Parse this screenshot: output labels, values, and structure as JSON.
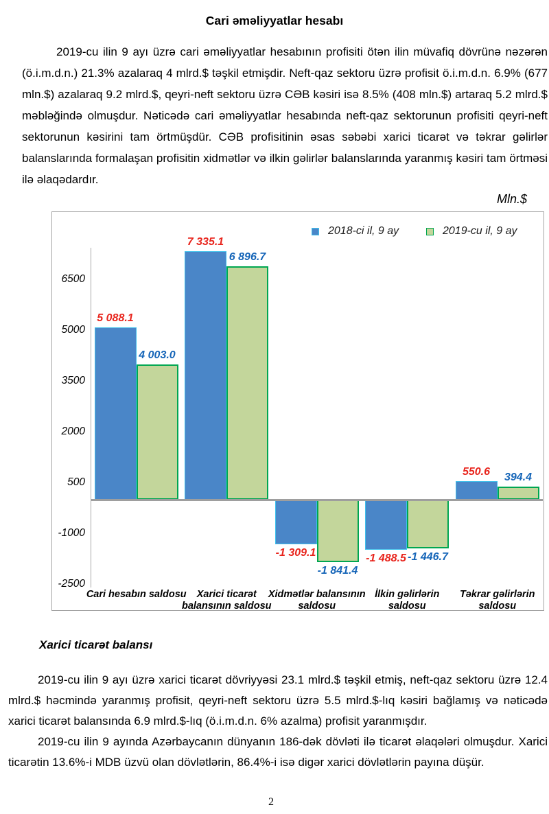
{
  "doc": {
    "title": "Cari əməliyyatlar hesabı",
    "para1": "2019-cu ilin 9 ayı üzrə cari əməliyyatlar hesabının profisiti ötən ilin müvafiq dövrünə nəzərən (ö.i.m.d.n.) 21.3% azalaraq 4 mlrd.$ təşkil etmişdir. Neft-qaz sektoru üzrə profisit ö.i.m.d.n. 6.9% (677 mln.$) azalaraq 9.2 mlrd.$, qeyri-neft sektoru üzrə CƏB kəsiri isə 8.5% (408 mln.$) artaraq 5.2 mlrd.$ məbləğində olmuşdur. Nəticədə cari əməliyyatlar hesabında neft-qaz sektorunun profisiti qeyri-neft sektorunun kəsirini tam örtmüşdür. CƏB profisitinin əsas səbəbi xarici ticarət və təkrar gəlirlər balanslarında formalaşan profisitin xidmətlər və ilkin gəlirlər balanslarında yaranmış kəsiri tam örtməsi ilə əlaqədardır.",
    "section2_heading": "Xarici ticarət balansı",
    "para2": "2019-cu ilin 9 ayı üzrə xarici ticarət dövriyyəsi 23.1 mlrd.$ təşkil etmiş, neft-qaz sektoru üzrə 12.4 mlrd.$ həcmində yaranmış profisit, qeyri-neft sektoru üzrə 5.5 mlrd.$-lıq kəsiri bağlamış və nəticədə xarici ticarət balansında 6.9 mlrd.$-lıq (ö.i.m.d.n. 6% azalma) profisit yaranmışdır.",
    "para3": "2019-cu ilin 9 ayında Azərbaycanın dünyanın 186-dək dövləti ilə ticarət əlaqələri olmuşdur. Xarici ticarətin 13.6%-i MDB üzvü olan dövlətlərin, 86.4%-i isə digər xarici dövlətlərin payına düşür.",
    "page_number": "2"
  },
  "chart_data": {
    "type": "bar",
    "unit_label": "Mln.$",
    "categories": [
      "Cari hesabın saldosu",
      "Xarici ticarət balansının saldosu",
      "Xidmətlər balansının saldosu",
      "İlkin gəlirlərin saldosu",
      "Təkrar gəlirlərin saldosu"
    ],
    "series": [
      {
        "name": "2018-ci il, 9 ay",
        "values": [
          5088.1,
          7335.1,
          -1309.1,
          -1488.5,
          550.6
        ],
        "labels": [
          "5 088.1",
          "7 335.1",
          "-1 309.1",
          "-1 488.5",
          "550.6"
        ],
        "color": "#4a86c8",
        "border_color": "#3fc1ec",
        "label_color": "#e8241c"
      },
      {
        "name": "2019-cu il, 9 ay",
        "values": [
          4003.0,
          6896.7,
          -1841.4,
          -1446.7,
          394.4
        ],
        "labels": [
          "4 003.0",
          "6 896.7",
          "-1 841.4",
          "-1 446.7",
          "394.4"
        ],
        "color": "#c3d69b",
        "border_color": "#00a651",
        "label_color": "#1565b8"
      }
    ],
    "y_ticks": [
      6500,
      5000,
      3500,
      2000,
      500,
      -1000,
      -2500
    ],
    "ylim": [
      -2600,
      7500
    ],
    "grid": false,
    "legend_position": "top",
    "axis_color": "#a6a6a6"
  }
}
